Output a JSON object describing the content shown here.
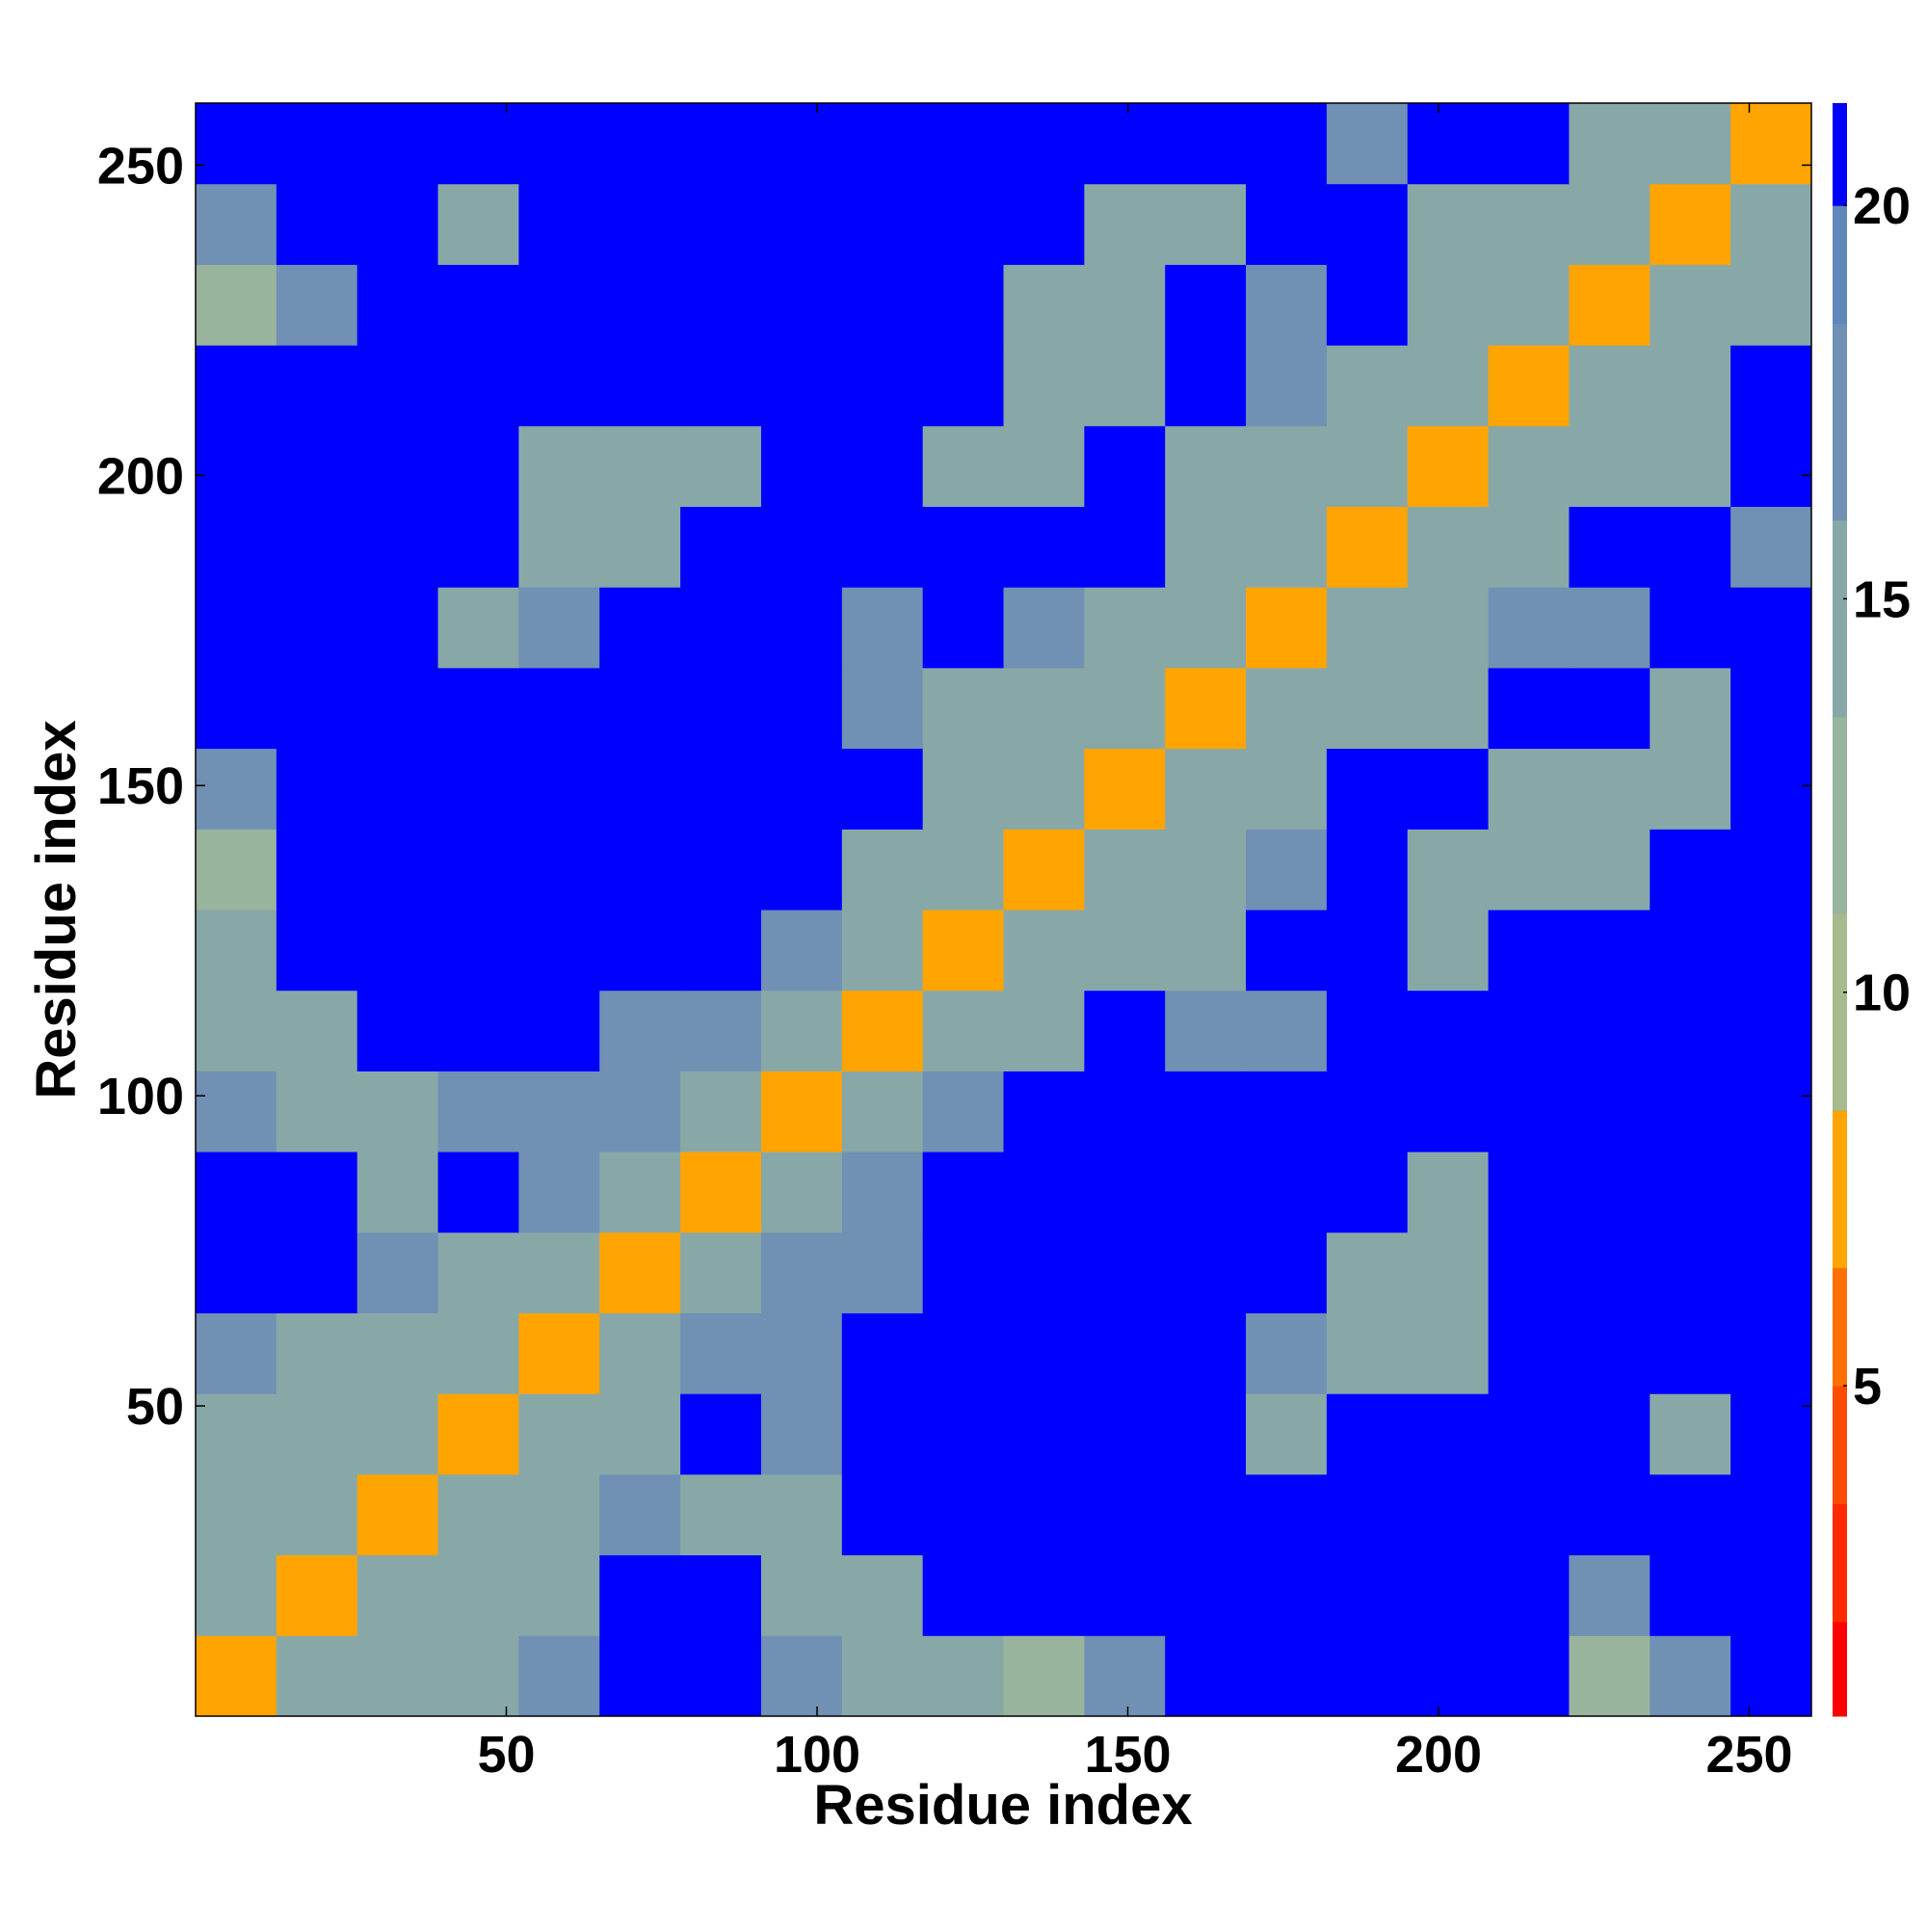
{
  "chart_data": {
    "type": "heatmap",
    "xlabel": "Residue index",
    "ylabel": "Residue index",
    "xbins": [
      0,
      13,
      26,
      39,
      52,
      65,
      78,
      91,
      104,
      117,
      130,
      143,
      156,
      169,
      182,
      195,
      208,
      221,
      234,
      247,
      260
    ],
    "ybins": [
      0,
      13,
      26,
      39,
      52,
      65,
      78,
      91,
      104,
      117,
      130,
      143,
      156,
      169,
      182,
      195,
      208,
      221,
      234,
      247,
      260
    ],
    "xlim": [
      0,
      260
    ],
    "ylim": [
      0,
      260
    ],
    "xticks": [
      50,
      100,
      150,
      200,
      250
    ],
    "yticks": [
      50,
      100,
      150,
      200,
      250
    ],
    "values": [
      [
        7,
        14,
        16,
        16,
        17,
        21,
        21,
        17,
        16,
        16,
        12,
        17,
        21,
        21,
        21,
        21,
        21,
        12,
        17,
        21
      ],
      [
        14,
        7,
        14,
        16,
        16,
        21,
        21,
        16,
        16,
        21,
        21,
        21,
        21,
        21,
        21,
        21,
        21,
        17,
        21,
        21
      ],
      [
        16,
        14,
        7,
        14,
        16,
        17,
        16,
        16,
        21,
        21,
        21,
        21,
        21,
        21,
        21,
        21,
        21,
        21,
        21,
        21
      ],
      [
        16,
        16,
        14,
        7,
        14,
        16,
        21,
        17,
        21,
        21,
        21,
        21,
        21,
        16,
        21,
        21,
        21,
        21,
        16,
        21
      ],
      [
        17,
        16,
        16,
        14,
        7,
        14,
        17,
        17,
        21,
        21,
        21,
        21,
        21,
        17,
        16,
        16,
        21,
        21,
        21,
        21
      ],
      [
        21,
        21,
        17,
        16,
        14,
        7,
        14,
        17,
        17,
        21,
        21,
        21,
        21,
        21,
        16,
        16,
        21,
        21,
        21,
        21
      ],
      [
        21,
        21,
        16,
        21,
        17,
        14,
        7,
        14,
        17,
        21,
        21,
        21,
        21,
        21,
        21,
        16,
        21,
        21,
        21,
        21
      ],
      [
        17,
        16,
        16,
        17,
        17,
        17,
        14,
        7,
        14,
        17,
        21,
        21,
        21,
        21,
        21,
        21,
        21,
        21,
        21,
        21
      ],
      [
        16,
        16,
        21,
        21,
        21,
        17,
        17,
        14,
        7,
        14,
        15,
        21,
        17,
        17,
        21,
        21,
        21,
        21,
        21,
        21
      ],
      [
        16,
        21,
        21,
        21,
        21,
        21,
        21,
        17,
        14,
        7,
        14,
        15,
        16,
        21,
        21,
        16,
        21,
        21,
        21,
        21
      ],
      [
        12,
        21,
        21,
        21,
        21,
        21,
        21,
        21,
        15,
        14,
        7,
        14,
        15,
        17,
        21,
        16,
        16,
        16,
        21,
        21
      ],
      [
        17,
        21,
        21,
        21,
        21,
        21,
        21,
        21,
        21,
        15,
        14,
        7,
        14,
        16,
        21,
        21,
        16,
        16,
        16,
        21
      ],
      [
        21,
        21,
        21,
        21,
        21,
        21,
        21,
        21,
        17,
        16,
        15,
        14,
        7,
        14,
        16,
        16,
        21,
        21,
        16,
        21
      ],
      [
        21,
        21,
        21,
        16,
        17,
        21,
        21,
        21,
        17,
        21,
        17,
        16,
        14,
        7,
        14,
        16,
        17,
        17,
        21,
        21
      ],
      [
        21,
        21,
        21,
        21,
        16,
        16,
        21,
        21,
        21,
        21,
        21,
        21,
        16,
        14,
        7,
        14,
        16,
        21,
        21,
        17
      ],
      [
        21,
        21,
        21,
        21,
        16,
        16,
        16,
        21,
        21,
        16,
        16,
        21,
        16,
        16,
        14,
        7,
        14,
        15,
        16,
        21
      ],
      [
        21,
        21,
        21,
        21,
        21,
        21,
        21,
        21,
        21,
        21,
        16,
        16,
        21,
        17,
        16,
        14,
        7,
        14,
        15,
        21
      ],
      [
        12,
        17,
        21,
        21,
        21,
        21,
        21,
        21,
        21,
        21,
        16,
        16,
        21,
        17,
        21,
        15,
        14,
        7,
        14,
        15
      ],
      [
        17,
        21,
        21,
        16,
        21,
        21,
        21,
        21,
        21,
        21,
        21,
        16,
        16,
        21,
        21,
        16,
        15,
        14,
        7,
        14
      ],
      [
        21,
        21,
        21,
        21,
        21,
        21,
        21,
        21,
        21,
        21,
        21,
        21,
        21,
        21,
        17,
        21,
        21,
        15,
        14,
        7
      ]
    ],
    "colorbar": {
      "lim": [
        0.8,
        21.3
      ],
      "ticks": [
        5,
        10,
        15,
        20
      ],
      "levels": [
        0.8,
        2,
        3.5,
        5,
        6.5,
        8.5,
        11,
        13.5,
        16,
        18.5,
        20,
        21.3
      ],
      "colors": [
        "#ff0000",
        "#ff2a00",
        "#ff4c00",
        "#ff7000",
        "#ffa400",
        "#a6ba8e",
        "#98b49c",
        "#88a8a8",
        "#7090b4",
        "#5f88ba",
        "#0000ff"
      ]
    }
  }
}
